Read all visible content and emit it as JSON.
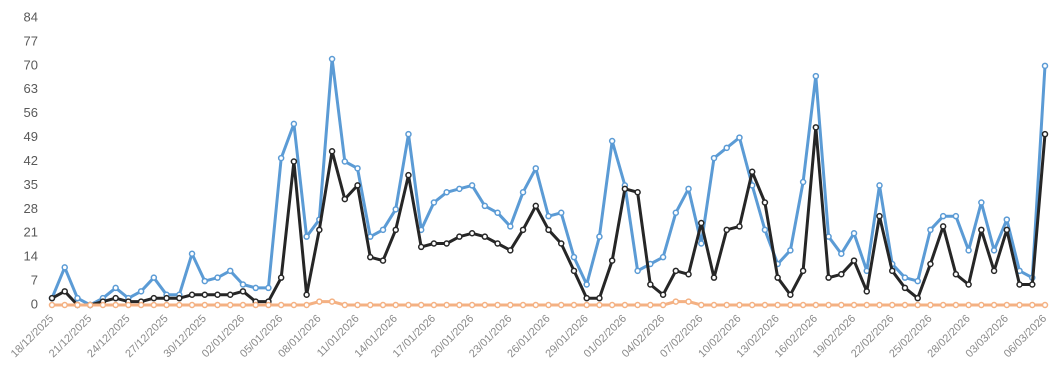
{
  "chart_data": {
    "type": "line",
    "categories": [
      "18/12/2025",
      null,
      null,
      "21/12/2025",
      null,
      null,
      "24/12/2025",
      null,
      null,
      "27/12/2025",
      null,
      null,
      "30/12/2025",
      null,
      null,
      "02/01/2026",
      null,
      null,
      "05/01/2026",
      null,
      null,
      "08/01/2026",
      null,
      null,
      "11/01/2026",
      null,
      null,
      "14/01/2026",
      null,
      null,
      "17/01/2026",
      null,
      null,
      "20/01/2026",
      null,
      null,
      "23/01/2026",
      null,
      null,
      "26/01/2026",
      null,
      null,
      "29/01/2026",
      null,
      null,
      "01/02/2026",
      null,
      null,
      "04/02/2026",
      null,
      null,
      "07/02/2026",
      null,
      null,
      "10/02/2026",
      null,
      null,
      "13/02/2026",
      null,
      null,
      "16/02/2026",
      null,
      null,
      "19/02/2026",
      null,
      null,
      "22/02/2026",
      null,
      null,
      "25/02/2026",
      null,
      null,
      "28/02/2026",
      null,
      null,
      "03/03/2026",
      null,
      null,
      "06/03/2026"
    ],
    "series": [
      {
        "color": "#5b9bd5",
        "values": [
          2,
          11,
          2,
          0,
          2,
          5,
          2,
          4,
          8,
          3,
          3,
          15,
          7,
          8,
          10,
          6,
          5,
          5,
          43,
          53,
          20,
          25,
          72,
          42,
          40,
          20,
          22,
          28,
          50,
          22,
          30,
          33,
          34,
          35,
          29,
          27,
          23,
          33,
          40,
          26,
          27,
          14,
          6,
          20,
          48,
          35,
          10,
          12,
          14,
          27,
          34,
          18,
          43,
          46,
          49,
          35,
          22,
          12,
          16,
          36,
          67,
          20,
          15,
          21,
          10,
          35,
          12,
          8,
          7,
          22,
          26,
          26,
          16,
          30,
          16,
          25,
          10,
          8,
          70
        ]
      },
      {
        "color": "#262626",
        "values": [
          2,
          4,
          0,
          0,
          1,
          2,
          1,
          1,
          2,
          2,
          2,
          3,
          3,
          3,
          3,
          4,
          1,
          1,
          8,
          42,
          3,
          22,
          45,
          31,
          35,
          14,
          13,
          22,
          38,
          17,
          18,
          18,
          20,
          21,
          20,
          18,
          16,
          22,
          29,
          22,
          18,
          10,
          2,
          2,
          13,
          34,
          33,
          6,
          3,
          10,
          9,
          24,
          8,
          22,
          23,
          39,
          30,
          8,
          3,
          10,
          52,
          8,
          9,
          13,
          4,
          26,
          10,
          5,
          2,
          12,
          23,
          9,
          6,
          22,
          10,
          22,
          6,
          6,
          50
        ]
      },
      {
        "color": "#f4b183",
        "values": [
          0,
          0,
          0,
          0,
          0,
          0,
          0,
          0,
          0,
          0,
          0,
          0,
          0,
          0,
          0,
          0,
          0,
          0,
          0,
          0,
          0,
          1,
          1,
          0,
          0,
          0,
          0,
          0,
          0,
          0,
          0,
          0,
          0,
          0,
          0,
          0,
          0,
          0,
          0,
          0,
          0,
          0,
          0,
          0,
          0,
          0,
          0,
          0,
          0,
          1,
          1,
          0,
          0,
          0,
          0,
          0,
          0,
          0,
          0,
          0,
          0,
          0,
          0,
          0,
          0,
          0,
          0,
          0,
          0,
          0,
          0,
          0,
          0,
          0,
          0,
          0,
          0,
          0,
          0
        ]
      }
    ],
    "ylim": [
      0,
      84
    ],
    "yticks": [
      0,
      7,
      14,
      21,
      28,
      35,
      42,
      49,
      56,
      63,
      70,
      77,
      84
    ]
  }
}
